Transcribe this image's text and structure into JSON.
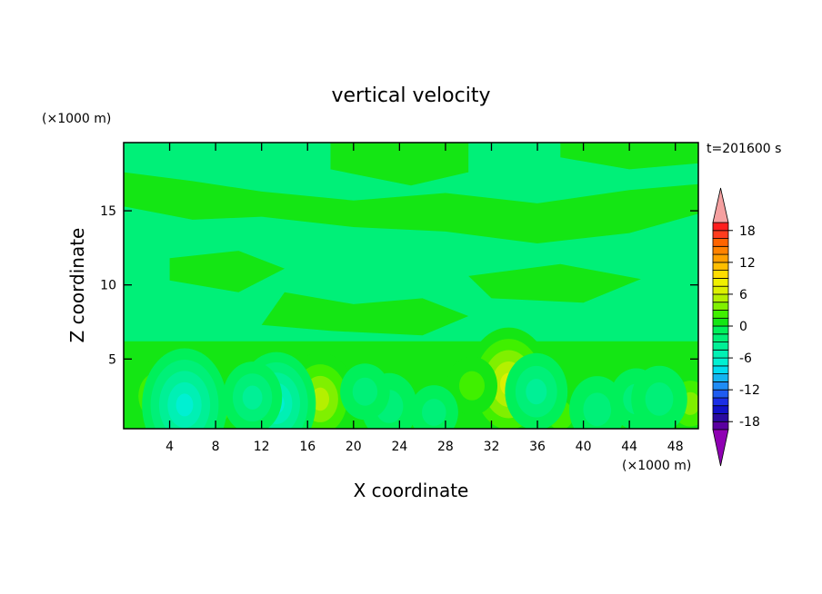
{
  "chart_data": {
    "type": "heatmap",
    "title": "vertical velocity",
    "xlabel": "X coordinate",
    "ylabel": "Z coordinate",
    "x_units": "(×1000 m)",
    "y_units": "(×1000 m)",
    "time_label": "t=201600 s",
    "xlim": [
      0,
      50
    ],
    "ylim": [
      0.3,
      19.6
    ],
    "x_ticks": [
      4,
      8,
      12,
      16,
      20,
      24,
      28,
      32,
      36,
      40,
      44,
      48
    ],
    "x_tick_labels": [
      "4",
      "8",
      "12",
      "16",
      "20",
      "24",
      "28",
      "32",
      "36",
      "40",
      "44",
      "48"
    ],
    "y_ticks": [
      5,
      10,
      15
    ],
    "y_tick_labels": [
      "5",
      "10",
      "15"
    ],
    "colorbar": {
      "levels": [
        -21,
        -19.5,
        -18,
        -16.5,
        -15,
        -13.5,
        -12,
        -10.5,
        -9,
        -7.5,
        -6,
        -4.5,
        -3,
        -1.5,
        0,
        1.5,
        3,
        4.5,
        6,
        7.5,
        9,
        10.5,
        12,
        13.5,
        15,
        16.5,
        18,
        19.5,
        21
      ],
      "tick_values": [
        -18,
        -12,
        -6,
        0,
        6,
        12,
        18
      ],
      "tick_labels": [
        "-18",
        "-12",
        "-6",
        "0",
        "6",
        "12",
        "18"
      ],
      "colors": [
        "#8f00b3",
        "#5a00a0",
        "#2a0aa0",
        "#1010c8",
        "#1a2ee6",
        "#1f5cf0",
        "#1f8cf5",
        "#14b4f0",
        "#00dcf0",
        "#00f0d2",
        "#00f0b4",
        "#00f096",
        "#00f078",
        "#00f05a",
        "#14e614",
        "#40f000",
        "#80f000",
        "#b4f000",
        "#dcf000",
        "#f0f000",
        "#ffdc00",
        "#ffbe00",
        "#ffa000",
        "#ff8200",
        "#ff6400",
        "#ff3c1e",
        "#ff1e1e",
        "#f5a0a0"
      ],
      "under_color": "#8f00b3",
      "over_color": "#f5a0a0"
    },
    "features": [
      {
        "x": 33.5,
        "z": 3.3,
        "value": 7.5
      },
      {
        "x": 17.1,
        "z": 2.3,
        "value": 5.5
      },
      {
        "x": 3.0,
        "z": 2.5,
        "value": 3.5
      },
      {
        "x": 7.6,
        "z": 2.0,
        "value": 3.5
      },
      {
        "x": 49.3,
        "z": 2.0,
        "value": 3.2
      },
      {
        "x": 30.3,
        "z": 3.2,
        "value": 2.2
      },
      {
        "x": 38.0,
        "z": 1.2,
        "value": 2.2
      },
      {
        "x": 5.3,
        "z": 1.9,
        "value": -7.5
      },
      {
        "x": 13.3,
        "z": 2.0,
        "value": -6.5
      },
      {
        "x": 11.2,
        "z": 2.4,
        "value": -3.5
      },
      {
        "x": 23.1,
        "z": 1.8,
        "value": -3.0
      },
      {
        "x": 35.9,
        "z": 2.8,
        "value": -4.0
      },
      {
        "x": 41.2,
        "z": 1.6,
        "value": -3.0
      },
      {
        "x": 44.6,
        "z": 2.3,
        "value": -2.5
      },
      {
        "x": 46.6,
        "z": 2.3,
        "value": -3.0
      },
      {
        "x": 21.0,
        "z": 2.8,
        "value": -2.0
      },
      {
        "x": 27.0,
        "z": 1.4,
        "value": -1.8
      }
    ]
  }
}
